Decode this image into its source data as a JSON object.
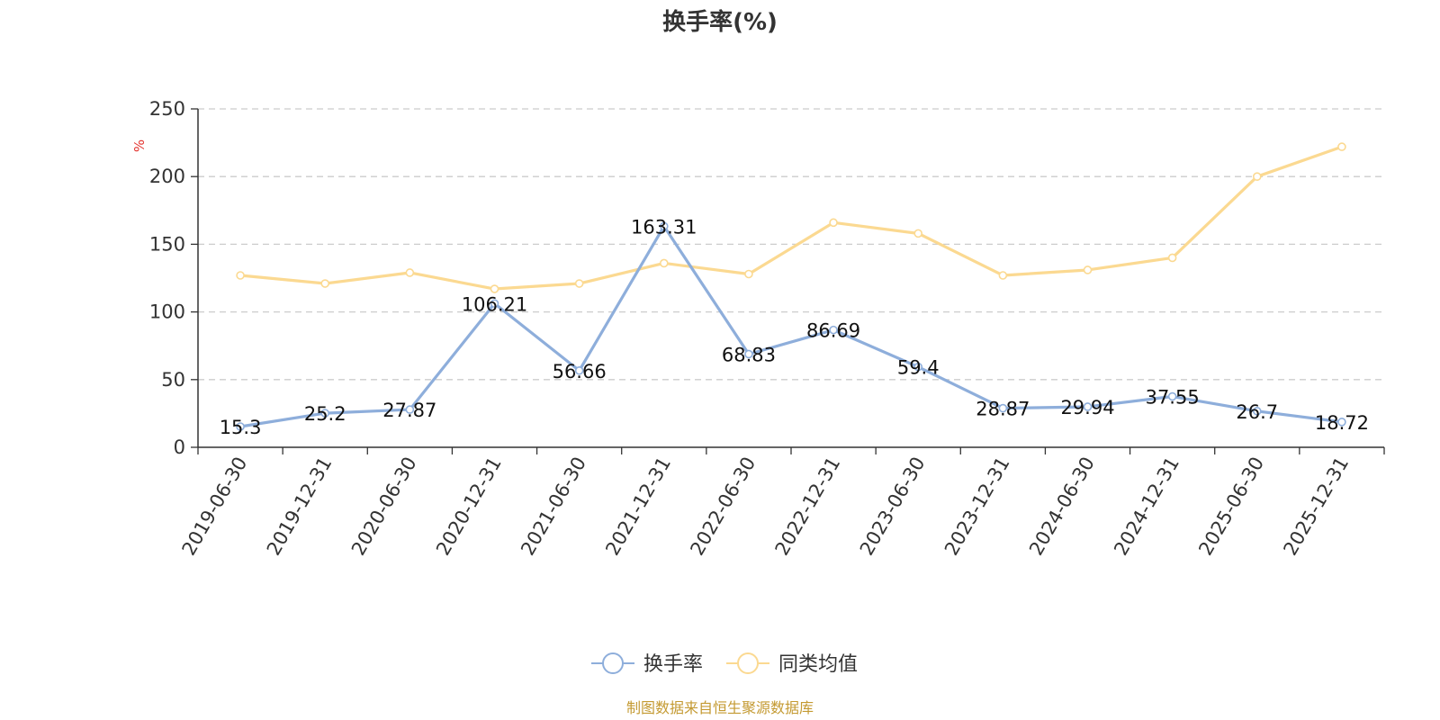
{
  "chart_data": {
    "type": "line",
    "title": "换手率(%)",
    "ylabel": "%",
    "ylim": [
      0,
      250
    ],
    "yticks": [
      0,
      50,
      100,
      150,
      200,
      250
    ],
    "grid": true,
    "legend_position": "bottom-center",
    "categories": [
      "2019-06-30",
      "2019-12-31",
      "2020-06-30",
      "2020-12-31",
      "2021-06-30",
      "2021-12-31",
      "2022-06-30",
      "2022-12-31",
      "2023-06-30",
      "2023-12-31",
      "2024-06-30",
      "2024-12-31",
      "2025-06-30",
      "2025-12-31"
    ],
    "series": [
      {
        "name": "换手率",
        "color": "#8eaedb",
        "show_labels": true,
        "values": [
          15.3,
          25.2,
          27.87,
          106.21,
          56.66,
          163.31,
          68.83,
          86.69,
          59.4,
          28.87,
          29.94,
          37.55,
          26.7,
          18.72
        ],
        "labels": [
          "15.3",
          "25.2",
          "27.87",
          "106.21",
          "56.66",
          "163.31",
          "68.83",
          "86.69",
          "59.4",
          "28.87",
          "29.94",
          "37.55",
          "26.7",
          "18.72"
        ]
      },
      {
        "name": "同类均值",
        "color": "#fbd991",
        "show_labels": false,
        "values": [
          127,
          121,
          129,
          117,
          121,
          136,
          128,
          166,
          158,
          127,
          131,
          140,
          200,
          222
        ]
      }
    ]
  },
  "source": "制图数据来自恒生聚源数据库"
}
